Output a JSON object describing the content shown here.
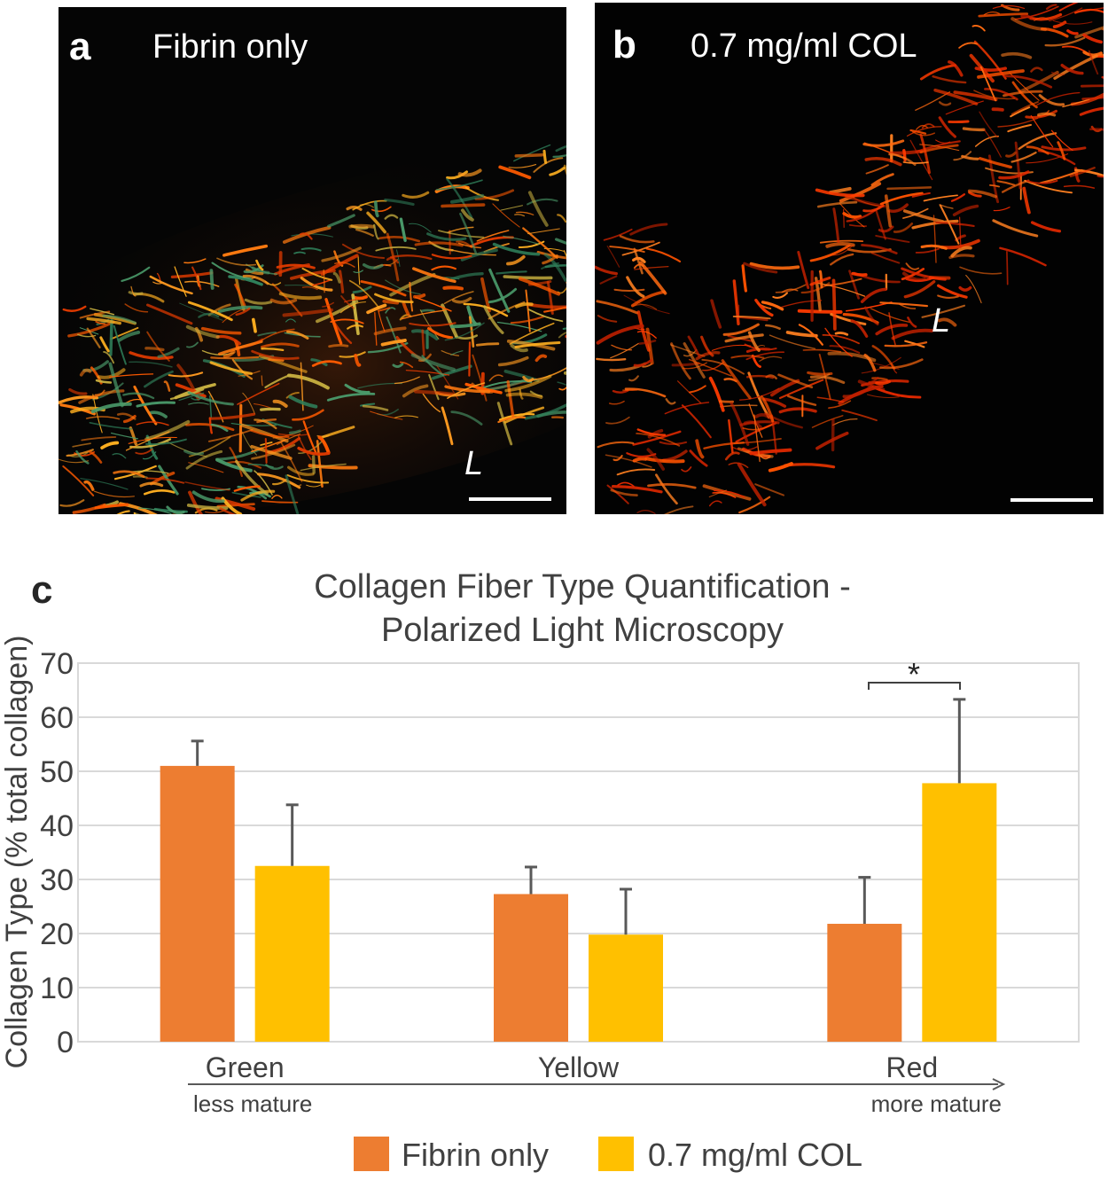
{
  "panels": {
    "a": {
      "letter": "a",
      "title": "Fibrin only",
      "lumen": "L"
    },
    "b": {
      "letter": "b",
      "title": "0.7 mg/ml COL",
      "lumen": "L"
    },
    "c": {
      "letter": "c"
    }
  },
  "axis_notes": {
    "left": "less mature",
    "right": "more mature"
  },
  "significance_marker": "*",
  "colors": {
    "fibrin_only": "#ED7D31",
    "col": "#FFC000",
    "errorbar": "#595959",
    "grid": "#D9D9D9",
    "text": "#404040"
  },
  "chart_data": {
    "type": "bar",
    "title": "Collagen Fiber Type Quantification - Polarized Light Microscopy",
    "title_lines": [
      "Collagen Fiber Type Quantification -",
      "Polarized Light Microscopy"
    ],
    "xlabel": "",
    "ylabel": "Collagen Type (% total collagen)",
    "ylim": [
      0,
      70
    ],
    "yticks": [
      0,
      10,
      20,
      30,
      40,
      50,
      60,
      70
    ],
    "grid": true,
    "legend_position": "bottom",
    "categories": [
      "Green",
      "Yellow",
      "Red"
    ],
    "series": [
      {
        "name": "Fibrin only",
        "values": [
          51,
          27.3,
          21.8
        ],
        "error": [
          4.6,
          5,
          8.6
        ]
      },
      {
        "name": "0.7 mg/ml COL",
        "values": [
          32.5,
          19.8,
          47.8
        ],
        "error": [
          11.3,
          8.4,
          15.5
        ]
      }
    ]
  }
}
